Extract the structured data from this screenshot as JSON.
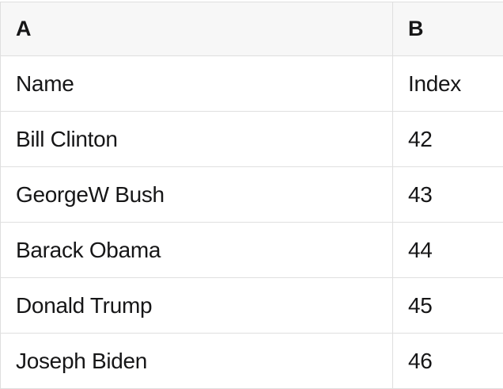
{
  "colors": {
    "border": "#dfdfdf",
    "header-bg": "#f7f7f7",
    "row-bg": "#ffffff",
    "text": "#161617"
  },
  "table": {
    "columns": [
      {
        "label": "A"
      },
      {
        "label": "B"
      }
    ],
    "rows": [
      {
        "cells": [
          "Name",
          "Index"
        ]
      },
      {
        "cells": [
          "Bill Clinton",
          "42"
        ]
      },
      {
        "cells": [
          "GeorgeW Bush",
          "43"
        ]
      },
      {
        "cells": [
          "Barack Obama",
          "44"
        ]
      },
      {
        "cells": [
          "Donald Trump",
          "45"
        ]
      },
      {
        "cells": [
          "Joseph Biden",
          "46"
        ]
      }
    ]
  }
}
